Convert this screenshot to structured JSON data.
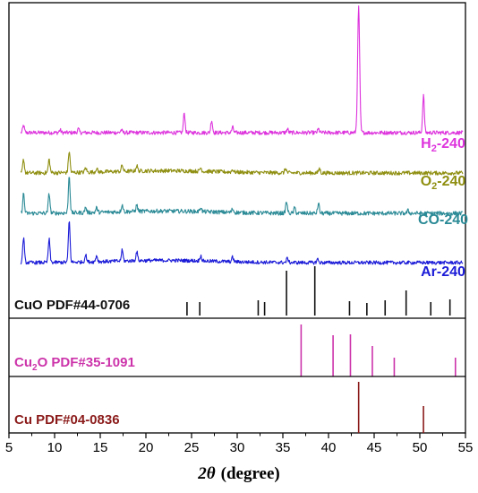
{
  "chart_data": {
    "type": "line",
    "xlabel_symbol": "2θ",
    "xlabel_unit": "(degree)",
    "xlim": [
      5,
      55
    ],
    "xticks": [
      5,
      10,
      15,
      20,
      25,
      30,
      35,
      40,
      45,
      50,
      55
    ],
    "grid": false,
    "series": [
      {
        "name": "H",
        "sub": "2",
        "suffix": "-240",
        "color": "#dd33dd",
        "baseline": 148,
        "noise": 2.2,
        "peaks": [
          [
            6.6,
            8
          ],
          [
            10.6,
            3
          ],
          [
            12.6,
            4
          ],
          [
            17.3,
            3
          ],
          [
            24.2,
            22
          ],
          [
            27.2,
            14
          ],
          [
            29.5,
            6
          ],
          [
            35.5,
            4
          ],
          [
            38.9,
            4
          ],
          [
            43.3,
            140
          ],
          [
            50.4,
            42
          ]
        ]
      },
      {
        "name": "O",
        "sub": "2",
        "suffix": "-240",
        "color": "#8f8f12",
        "baseline": 193,
        "noise": 2.2,
        "peaks": [
          [
            6.6,
            15
          ],
          [
            9.4,
            15
          ],
          [
            11.6,
            24
          ],
          [
            13.4,
            5
          ],
          [
            14.6,
            4
          ],
          [
            17.4,
            7
          ],
          [
            19.0,
            6
          ],
          [
            26.0,
            4
          ],
          [
            29.5,
            3
          ],
          [
            35.3,
            5
          ],
          [
            39.0,
            5
          ]
        ]
      },
      {
        "name": "CO",
        "sub": "",
        "suffix": "-240",
        "color": "#2a8a96",
        "baseline": 238,
        "noise": 2.3,
        "peaks": [
          [
            6.6,
            22
          ],
          [
            9.4,
            22
          ],
          [
            11.6,
            42
          ],
          [
            13.4,
            6
          ],
          [
            14.6,
            5
          ],
          [
            17.4,
            8
          ],
          [
            19.0,
            7
          ],
          [
            26.0,
            5
          ],
          [
            29.5,
            4
          ],
          [
            35.4,
            13
          ],
          [
            36.3,
            6
          ],
          [
            38.9,
            11
          ],
          [
            48.7,
            3
          ]
        ]
      },
      {
        "name": "Ar",
        "sub": "",
        "suffix": "-240",
        "color": "#1b1bd8",
        "baseline": 293,
        "noise": 2.0,
        "peaks": [
          [
            6.6,
            28
          ],
          [
            9.4,
            26
          ],
          [
            11.6,
            46
          ],
          [
            13.4,
            8
          ],
          [
            14.6,
            7
          ],
          [
            17.4,
            12
          ],
          [
            19.0,
            10
          ],
          [
            26.0,
            6
          ],
          [
            29.5,
            5
          ],
          [
            35.5,
            5
          ],
          [
            38.8,
            4
          ]
        ]
      }
    ],
    "references": [
      {
        "label": "CuO PDF#44-0706",
        "color": "#111111",
        "band_top": 300,
        "band_bottom": 355,
        "lines": [
          [
            24.5,
            15
          ],
          [
            25.9,
            15
          ],
          [
            32.3,
            17
          ],
          [
            33.0,
            15
          ],
          [
            35.4,
            50
          ],
          [
            38.5,
            55
          ],
          [
            42.3,
            16
          ],
          [
            44.2,
            14
          ],
          [
            46.2,
            17
          ],
          [
            48.5,
            28
          ],
          [
            51.2,
            15
          ],
          [
            53.3,
            18
          ]
        ]
      },
      {
        "label": "Cu2O PDF#35-1091",
        "label_main": "Cu",
        "label_sub": "2",
        "label_rest": "O PDF#35-1091",
        "color": "#cc33aa",
        "band_top": 355,
        "band_bottom": 420,
        "lines": [
          [
            37.0,
            58
          ],
          [
            40.5,
            46
          ],
          [
            42.4,
            47
          ],
          [
            44.8,
            34
          ],
          [
            47.2,
            21
          ],
          [
            53.9,
            21
          ]
        ]
      },
      {
        "label": "Cu  PDF#04-0836",
        "color": "#8b1a1a",
        "band_top": 420,
        "band_bottom": 483,
        "lines": [
          [
            43.3,
            57
          ],
          [
            50.4,
            30
          ]
        ]
      }
    ]
  }
}
